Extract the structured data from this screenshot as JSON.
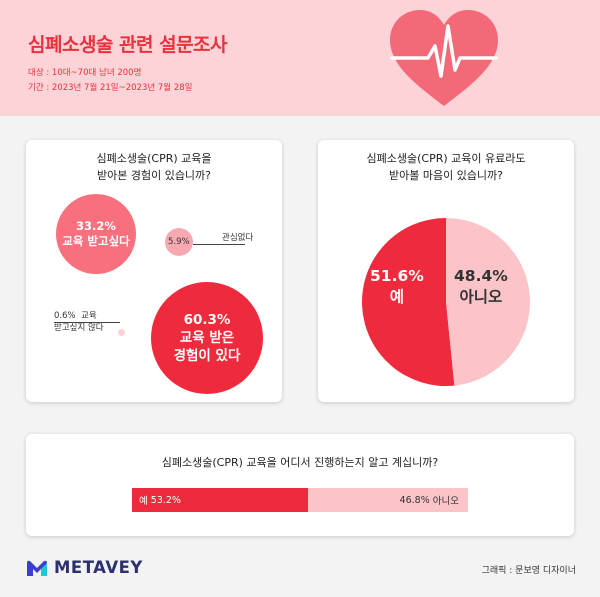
{
  "header": {
    "title": "심폐소생술 관련 설문조사",
    "target": "대상 : 10대~70대 남녀 200명",
    "period": "기간 : 2023년 7월 21일~2023년 7월 28일"
  },
  "colors": {
    "primary_red": "#f02a3d",
    "pink": "#f8707e",
    "light_pink": "#fbc4c9",
    "header_bg": "#fcd3d6"
  },
  "chart_data": [
    {
      "type": "bubble",
      "title": "심폐소생술(CPR) 교육을 받아본 경험이 있습니까?",
      "title_lines": [
        "심폐소생술(CPR) 교육을",
        "받아본 경험이 있습니까?"
      ],
      "slices": [
        {
          "label": "교육 받은 경험이 있다",
          "label_lines": [
            "교육 받은",
            "경험이 있다"
          ],
          "value": 60.3,
          "display": "60.3%"
        },
        {
          "label": "교육 받고싶다",
          "label_lines": [
            "교육 받고싶다"
          ],
          "value": 33.2,
          "display": "33.2%"
        },
        {
          "label": "관심없다",
          "value": 5.9,
          "display": "5.9%"
        },
        {
          "label": "교육 받고싶지 않다",
          "label_lines": [
            "교육",
            "받고싶지 않다"
          ],
          "value": 0.6,
          "display": "0.6%"
        }
      ]
    },
    {
      "type": "pie",
      "title": "심폐소생술(CPR) 교육이 유료라도 받아볼 마음이 있습니까?",
      "title_lines": [
        "심폐소생술(CPR) 교육이 유료라도",
        "받아볼 마음이 있습니까?"
      ],
      "slices": [
        {
          "label": "예",
          "value": 51.6,
          "display": "51.6%",
          "color": "#f02a3d"
        },
        {
          "label": "아니오",
          "value": 48.4,
          "display": "48.4%",
          "color": "#fbc4c9"
        }
      ]
    },
    {
      "type": "bar",
      "orientation": "horizontal-stacked",
      "title": "심폐소생술(CPR) 교육을 어디서 진행하는지 알고 계십니까?",
      "segments": [
        {
          "label": "예",
          "value": 53.2,
          "display": "53.2%"
        },
        {
          "label": "아니오",
          "value": 46.8,
          "display": "46.8%"
        }
      ]
    }
  ],
  "footer": {
    "brand": "METAVEY",
    "credit": "그래픽 : 문보영 디자이너"
  }
}
